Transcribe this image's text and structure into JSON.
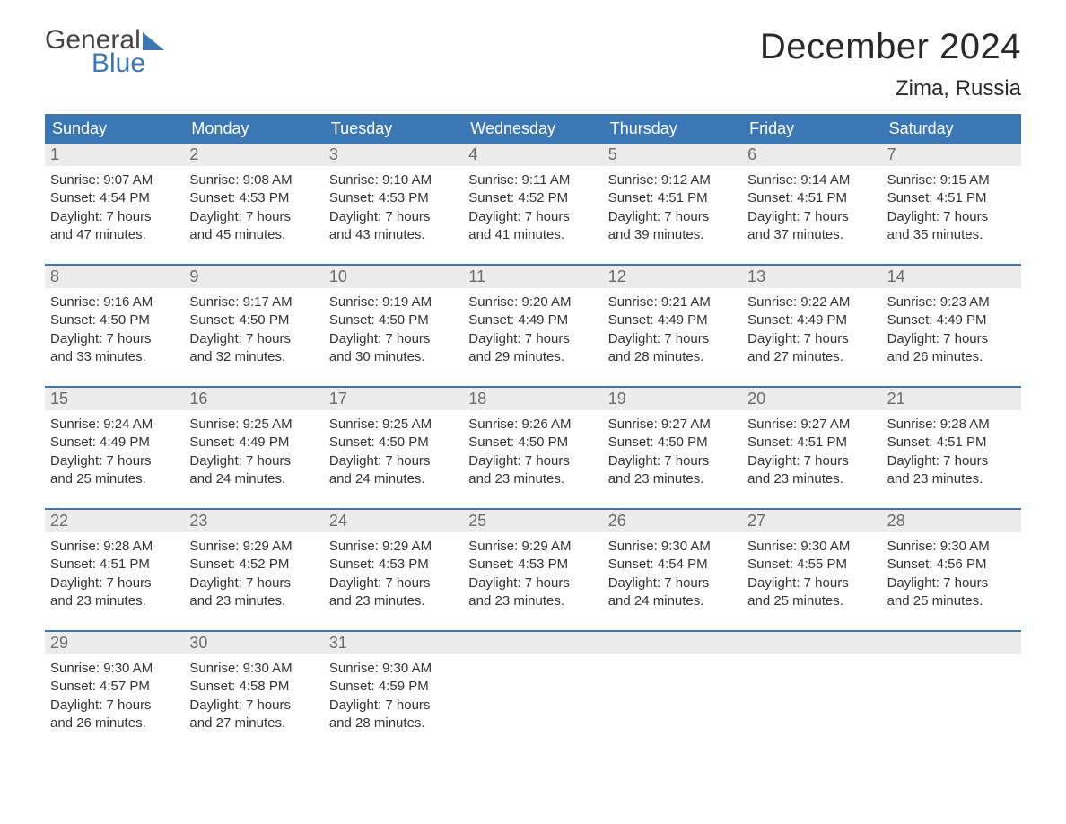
{
  "logo": {
    "line1": "General",
    "line2": "Blue"
  },
  "title": "December 2024",
  "location": "Zima, Russia",
  "colors": {
    "header_bg": "#3b76b5",
    "header_text": "#ffffff",
    "daynum_bg": "#ececec",
    "daynum_text": "#6b6b6b",
    "body_text": "#333333",
    "rule": "#3b76b5"
  },
  "fonts": {
    "title_pt": 40,
    "location_pt": 24,
    "dow_pt": 18,
    "daynum_pt": 18,
    "cell_pt": 15
  },
  "dow": [
    "Sunday",
    "Monday",
    "Tuesday",
    "Wednesday",
    "Thursday",
    "Friday",
    "Saturday"
  ],
  "weeks": [
    [
      {
        "n": "1",
        "sr": "Sunrise: 9:07 AM",
        "ss": "Sunset: 4:54 PM",
        "d1": "Daylight: 7 hours",
        "d2": "and 47 minutes."
      },
      {
        "n": "2",
        "sr": "Sunrise: 9:08 AM",
        "ss": "Sunset: 4:53 PM",
        "d1": "Daylight: 7 hours",
        "d2": "and 45 minutes."
      },
      {
        "n": "3",
        "sr": "Sunrise: 9:10 AM",
        "ss": "Sunset: 4:53 PM",
        "d1": "Daylight: 7 hours",
        "d2": "and 43 minutes."
      },
      {
        "n": "4",
        "sr": "Sunrise: 9:11 AM",
        "ss": "Sunset: 4:52 PM",
        "d1": "Daylight: 7 hours",
        "d2": "and 41 minutes."
      },
      {
        "n": "5",
        "sr": "Sunrise: 9:12 AM",
        "ss": "Sunset: 4:51 PM",
        "d1": "Daylight: 7 hours",
        "d2": "and 39 minutes."
      },
      {
        "n": "6",
        "sr": "Sunrise: 9:14 AM",
        "ss": "Sunset: 4:51 PM",
        "d1": "Daylight: 7 hours",
        "d2": "and 37 minutes."
      },
      {
        "n": "7",
        "sr": "Sunrise: 9:15 AM",
        "ss": "Sunset: 4:51 PM",
        "d1": "Daylight: 7 hours",
        "d2": "and 35 minutes."
      }
    ],
    [
      {
        "n": "8",
        "sr": "Sunrise: 9:16 AM",
        "ss": "Sunset: 4:50 PM",
        "d1": "Daylight: 7 hours",
        "d2": "and 33 minutes."
      },
      {
        "n": "9",
        "sr": "Sunrise: 9:17 AM",
        "ss": "Sunset: 4:50 PM",
        "d1": "Daylight: 7 hours",
        "d2": "and 32 minutes."
      },
      {
        "n": "10",
        "sr": "Sunrise: 9:19 AM",
        "ss": "Sunset: 4:50 PM",
        "d1": "Daylight: 7 hours",
        "d2": "and 30 minutes."
      },
      {
        "n": "11",
        "sr": "Sunrise: 9:20 AM",
        "ss": "Sunset: 4:49 PM",
        "d1": "Daylight: 7 hours",
        "d2": "and 29 minutes."
      },
      {
        "n": "12",
        "sr": "Sunrise: 9:21 AM",
        "ss": "Sunset: 4:49 PM",
        "d1": "Daylight: 7 hours",
        "d2": "and 28 minutes."
      },
      {
        "n": "13",
        "sr": "Sunrise: 9:22 AM",
        "ss": "Sunset: 4:49 PM",
        "d1": "Daylight: 7 hours",
        "d2": "and 27 minutes."
      },
      {
        "n": "14",
        "sr": "Sunrise: 9:23 AM",
        "ss": "Sunset: 4:49 PM",
        "d1": "Daylight: 7 hours",
        "d2": "and 26 minutes."
      }
    ],
    [
      {
        "n": "15",
        "sr": "Sunrise: 9:24 AM",
        "ss": "Sunset: 4:49 PM",
        "d1": "Daylight: 7 hours",
        "d2": "and 25 minutes."
      },
      {
        "n": "16",
        "sr": "Sunrise: 9:25 AM",
        "ss": "Sunset: 4:49 PM",
        "d1": "Daylight: 7 hours",
        "d2": "and 24 minutes."
      },
      {
        "n": "17",
        "sr": "Sunrise: 9:25 AM",
        "ss": "Sunset: 4:50 PM",
        "d1": "Daylight: 7 hours",
        "d2": "and 24 minutes."
      },
      {
        "n": "18",
        "sr": "Sunrise: 9:26 AM",
        "ss": "Sunset: 4:50 PM",
        "d1": "Daylight: 7 hours",
        "d2": "and 23 minutes."
      },
      {
        "n": "19",
        "sr": "Sunrise: 9:27 AM",
        "ss": "Sunset: 4:50 PM",
        "d1": "Daylight: 7 hours",
        "d2": "and 23 minutes."
      },
      {
        "n": "20",
        "sr": "Sunrise: 9:27 AM",
        "ss": "Sunset: 4:51 PM",
        "d1": "Daylight: 7 hours",
        "d2": "and 23 minutes."
      },
      {
        "n": "21",
        "sr": "Sunrise: 9:28 AM",
        "ss": "Sunset: 4:51 PM",
        "d1": "Daylight: 7 hours",
        "d2": "and 23 minutes."
      }
    ],
    [
      {
        "n": "22",
        "sr": "Sunrise: 9:28 AM",
        "ss": "Sunset: 4:51 PM",
        "d1": "Daylight: 7 hours",
        "d2": "and 23 minutes."
      },
      {
        "n": "23",
        "sr": "Sunrise: 9:29 AM",
        "ss": "Sunset: 4:52 PM",
        "d1": "Daylight: 7 hours",
        "d2": "and 23 minutes."
      },
      {
        "n": "24",
        "sr": "Sunrise: 9:29 AM",
        "ss": "Sunset: 4:53 PM",
        "d1": "Daylight: 7 hours",
        "d2": "and 23 minutes."
      },
      {
        "n": "25",
        "sr": "Sunrise: 9:29 AM",
        "ss": "Sunset: 4:53 PM",
        "d1": "Daylight: 7 hours",
        "d2": "and 23 minutes."
      },
      {
        "n": "26",
        "sr": "Sunrise: 9:30 AM",
        "ss": "Sunset: 4:54 PM",
        "d1": "Daylight: 7 hours",
        "d2": "and 24 minutes."
      },
      {
        "n": "27",
        "sr": "Sunrise: 9:30 AM",
        "ss": "Sunset: 4:55 PM",
        "d1": "Daylight: 7 hours",
        "d2": "and 25 minutes."
      },
      {
        "n": "28",
        "sr": "Sunrise: 9:30 AM",
        "ss": "Sunset: 4:56 PM",
        "d1": "Daylight: 7 hours",
        "d2": "and 25 minutes."
      }
    ],
    [
      {
        "n": "29",
        "sr": "Sunrise: 9:30 AM",
        "ss": "Sunset: 4:57 PM",
        "d1": "Daylight: 7 hours",
        "d2": "and 26 minutes."
      },
      {
        "n": "30",
        "sr": "Sunrise: 9:30 AM",
        "ss": "Sunset: 4:58 PM",
        "d1": "Daylight: 7 hours",
        "d2": "and 27 minutes."
      },
      {
        "n": "31",
        "sr": "Sunrise: 9:30 AM",
        "ss": "Sunset: 4:59 PM",
        "d1": "Daylight: 7 hours",
        "d2": "and 28 minutes."
      },
      {
        "n": "",
        "sr": "",
        "ss": "",
        "d1": "",
        "d2": ""
      },
      {
        "n": "",
        "sr": "",
        "ss": "",
        "d1": "",
        "d2": ""
      },
      {
        "n": "",
        "sr": "",
        "ss": "",
        "d1": "",
        "d2": ""
      },
      {
        "n": "",
        "sr": "",
        "ss": "",
        "d1": "",
        "d2": ""
      }
    ]
  ]
}
